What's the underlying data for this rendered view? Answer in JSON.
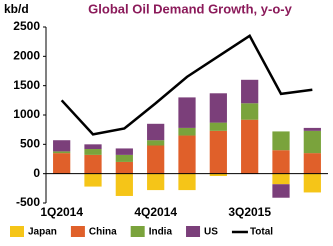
{
  "chart_data": {
    "type": "stacked-bar-line",
    "title": "Global Oil Demand Growth, y-o-y",
    "y_label": "kb/d",
    "categories": [
      "1Q2014",
      null,
      null,
      "4Q2014",
      null,
      null,
      "3Q2015",
      null,
      null
    ],
    "series": [
      {
        "name": "Japan",
        "color": "#f5c518",
        "values": [
          0,
          -220,
          -380,
          -280,
          -280,
          -40,
          0,
          -180,
          -320
        ]
      },
      {
        "name": "China",
        "color": "#e0602a",
        "values": [
          350,
          320,
          200,
          480,
          650,
          730,
          920,
          400,
          350
        ]
      },
      {
        "name": "India",
        "color": "#7aa33c",
        "values": [
          30,
          100,
          120,
          90,
          130,
          140,
          280,
          320,
          380
        ]
      },
      {
        "name": "US",
        "color": "#7b3f7a",
        "values": [
          190,
          80,
          110,
          280,
          520,
          500,
          400,
          -230,
          50
        ]
      },
      {
        "name": "Total",
        "color": "#000000",
        "kind": "line",
        "values": [
          1250,
          670,
          770,
          1200,
          1650,
          2000,
          2350,
          1360,
          1430
        ]
      }
    ],
    "ylim": [
      -500,
      2500
    ],
    "yticks": [
      -500,
      0,
      500,
      1000,
      1500,
      2000,
      2500
    ],
    "grid": false
  }
}
